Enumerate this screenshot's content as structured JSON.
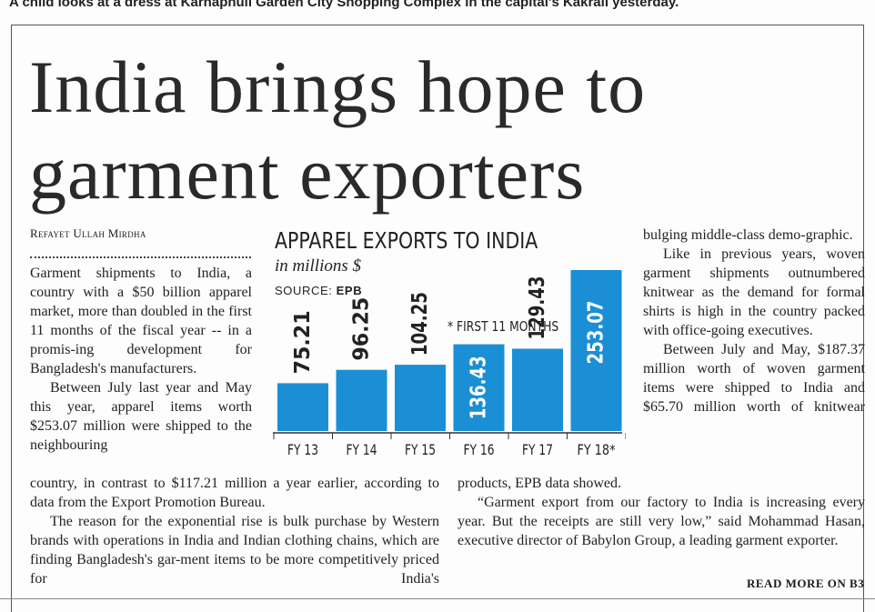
{
  "caption": "A child looks at a dress at Karnaphuli Garden City Shopping Complex in the capital's Kakrail yesterday.",
  "headline": {
    "line1": "India brings hope to",
    "line2": "garment exporters"
  },
  "byline": "Refayet Ullah Mirdha",
  "body": {
    "p1": "Garment shipments to India, a country with a $50 billion apparel market, more than doubled in the first 11 months of the fiscal year -- in a promis-ing development for Bangladesh's manufacturers.",
    "p2": "Between July last year and May this year, apparel items worth $253.07 million were shipped to the neighbouring",
    "p2_cont": "country, in contrast to $117.21 million a year earlier, according to data from the Export Promotion Bureau.",
    "p3": "The reason for the exponential rise is bulk purchase by Western brands with operations in India and Indian clothing chains, which are finding Bangladesh's gar-ment items to be more competitively priced for India's",
    "p3_cont": "bulging middle-class demo-graphic.",
    "p4": "Like in previous years, woven garment shipments outnumbered knitwear as the demand for formal shirts is high in the country packed with office-going executives.",
    "p5": "Between July and May, $187.37 million worth of woven garment items were shipped to India and $65.70 million worth of knitwear",
    "p5_cont": "products, EPB data showed.",
    "p6": "“Garment export from our factory to India is increasing every year. But the receipts are still very low,” said Mohammad Hasan, executive director of Babylon Group, a leading garment exporter."
  },
  "read_more": "READ MORE ON B3",
  "chart_data": {
    "type": "bar",
    "title": "APPAREL EXPORTS TO INDIA",
    "subtitle": "in millions $",
    "source_label": "SOURCE:",
    "source": "EPB",
    "note": "* FIRST 11 MONTHS",
    "categories": [
      "FY 13",
      "FY 14",
      "FY 15",
      "FY 16",
      "FY 17",
      "FY 18*"
    ],
    "values": [
      75.21,
      96.25,
      104.25,
      136.43,
      129.43,
      253.07
    ],
    "value_labels": [
      "75.21",
      "96.25",
      "104.25",
      "136.43",
      "129.43",
      "253.07"
    ],
    "ylim": [
      0,
      253.07
    ],
    "bar_color": "#1a8fd6",
    "label_color_inside": "#ffffff",
    "label_color_outside": "#222222"
  }
}
